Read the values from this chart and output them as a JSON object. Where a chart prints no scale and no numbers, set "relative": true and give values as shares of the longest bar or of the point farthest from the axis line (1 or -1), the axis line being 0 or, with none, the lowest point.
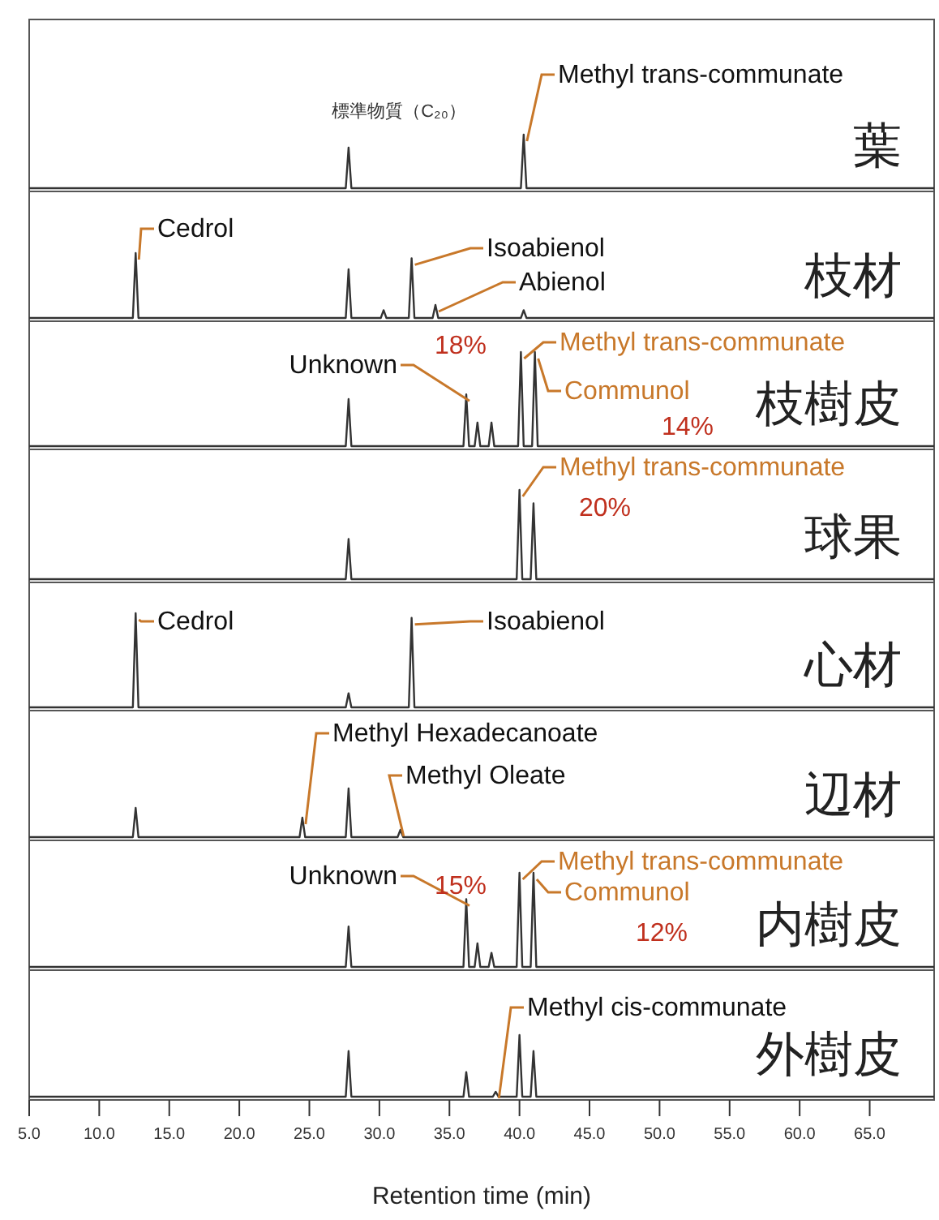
{
  "chart_data": [
    {
      "type": "line",
      "title": "葉",
      "relative": true,
      "color": "#333333",
      "tick_labels": false,
      "xlim": [
        5,
        69.6
      ],
      "x": [
        5,
        27.6,
        27.8,
        28.0,
        40.1,
        40.3,
        40.5,
        69.6
      ],
      "values": [
        0,
        0,
        0.76,
        0,
        0,
        1,
        0,
        0
      ],
      "annotations": [
        "標準物質（C₂₀）",
        {
          "text": "Methyl trans-communate",
          "x": 40.3,
          "y": 1
        }
      ]
    },
    {
      "type": "line",
      "title": "枝材",
      "relative": true,
      "color": "#333333",
      "tick_labels": false,
      "xlim": [
        5,
        69.6
      ],
      "x": [
        5,
        12.4,
        12.6,
        12.8,
        27.6,
        27.8,
        28.0,
        30.1,
        30.3,
        30.5,
        32.1,
        32.3,
        32.5,
        33.8,
        34.0,
        34.2,
        40.1,
        40.3,
        40.5,
        69.6
      ],
      "values": [
        0,
        0,
        1,
        0,
        0,
        0.75,
        0,
        0,
        0.12,
        0,
        0,
        0.92,
        0,
        0,
        0.2,
        0,
        0,
        0.12,
        0,
        0
      ],
      "annotations": [
        {
          "text": "Cedrol",
          "x": 12.6,
          "y": 1
        },
        {
          "text": "Isoabienol",
          "x": 32.3,
          "y": 0.92
        },
        {
          "text": "Abienol",
          "x": 34.0,
          "y": 0.2
        }
      ]
    },
    {
      "type": "line",
      "title": "枝樹皮",
      "relative": true,
      "color": "#333333",
      "tick_labels": false,
      "xlim": [
        5,
        69.6
      ],
      "x": [
        5,
        27.6,
        27.8,
        28.0,
        36.0,
        36.2,
        36.4,
        36.8,
        37.0,
        37.2,
        37.8,
        38.0,
        38.2,
        39.9,
        40.1,
        40.3,
        40.9,
        41.1,
        41.3,
        69.6
      ],
      "values": [
        0,
        0,
        0.5,
        0,
        0,
        0.55,
        0,
        0,
        0.25,
        0,
        0,
        0.25,
        0,
        0,
        1,
        0,
        0,
        1,
        0,
        0
      ],
      "annotations": [
        {
          "text": "Unknown",
          "x": 36.2,
          "y": 0.55
        },
        "18%",
        {
          "text": "Methyl trans-communate",
          "x": 40.1,
          "y": 1
        },
        {
          "text": "Communol",
          "x": 41.1,
          "y": 1
        },
        "14%"
      ]
    },
    {
      "type": "line",
      "title": "球果",
      "relative": true,
      "color": "#333333",
      "tick_labels": false,
      "xlim": [
        5,
        69.6
      ],
      "x": [
        5,
        27.6,
        27.8,
        28.0,
        39.8,
        40.0,
        40.2,
        40.8,
        41.0,
        41.2,
        69.6
      ],
      "values": [
        0,
        0,
        0.45,
        0,
        0,
        1,
        0,
        0,
        0.85,
        0,
        0
      ],
      "annotations": [
        {
          "text": "Methyl trans-communate",
          "x": 40.0,
          "y": 1
        },
        "20%"
      ]
    },
    {
      "type": "line",
      "title": "心材",
      "relative": true,
      "color": "#333333",
      "tick_labels": false,
      "xlim": [
        5,
        69.6
      ],
      "x": [
        5,
        12.4,
        12.6,
        12.8,
        27.6,
        27.8,
        28.0,
        32.1,
        32.3,
        32.5,
        69.6
      ],
      "values": [
        0,
        0,
        1,
        0,
        0,
        0.15,
        0,
        0,
        0.95,
        0,
        0
      ],
      "annotations": [
        {
          "text": "Cedrol",
          "x": 12.6,
          "y": 1
        },
        {
          "text": "Isoabienol",
          "x": 32.3,
          "y": 0.95
        }
      ]
    },
    {
      "type": "line",
      "title": "辺材",
      "relative": true,
      "color": "#333333",
      "tick_labels": false,
      "xlim": [
        5,
        69.6
      ],
      "x": [
        5,
        12.4,
        12.6,
        12.8,
        24.3,
        24.5,
        24.7,
        27.6,
        27.8,
        28.0,
        31.3,
        31.5,
        31.7,
        69.6
      ],
      "values": [
        0,
        0,
        0.6,
        0,
        0,
        0.4,
        0,
        0,
        1,
        0,
        0,
        0.15,
        0,
        0
      ],
      "annotations": [
        {
          "text": "Methyl Hexadecanoate",
          "x": 24.5,
          "y": 0.4
        },
        {
          "text": "Methyl Oleate",
          "x": 31.5,
          "y": 0.15
        }
      ]
    },
    {
      "type": "line",
      "title": "内樹皮",
      "relative": true,
      "color": "#333333",
      "tick_labels": false,
      "xlim": [
        5,
        69.6
      ],
      "x": [
        5,
        27.6,
        27.8,
        28.0,
        36.0,
        36.2,
        36.4,
        36.8,
        37.0,
        37.2,
        37.8,
        38.0,
        38.2,
        39.8,
        40.0,
        40.2,
        40.8,
        41.0,
        41.2,
        69.6
      ],
      "values": [
        0,
        0,
        0.43,
        0,
        0,
        0.72,
        0,
        0,
        0.25,
        0,
        0,
        0.15,
        0,
        0,
        1,
        0,
        0,
        1,
        0,
        0
      ],
      "annotations": [
        {
          "text": "Unknown",
          "x": 36.2,
          "y": 0.72
        },
        "15%",
        {
          "text": "Methyl trans-communate",
          "x": 40.0,
          "y": 1
        },
        {
          "text": "Communol",
          "x": 41.0,
          "y": 1
        },
        "12%"
      ]
    },
    {
      "type": "line",
      "title": "外樹皮",
      "relative": true,
      "color": "#333333",
      "tick_labels": "x",
      "xlim": [
        5,
        69.6
      ],
      "xlabel": "Retention time (min)",
      "x": [
        5,
        27.6,
        27.8,
        28.0,
        36.0,
        36.2,
        36.4,
        38.1,
        38.3,
        38.5,
        39.8,
        40.0,
        40.2,
        40.8,
        41.0,
        41.2,
        69.6
      ],
      "values": [
        0,
        0,
        0.74,
        0,
        0,
        0.4,
        0,
        0,
        0.08,
        0,
        0,
        1,
        0,
        0,
        0.74,
        0,
        0
      ],
      "xticks": [
        {
          "value": 5,
          "label": "5.0"
        },
        {
          "value": 10,
          "label": "10.0"
        },
        {
          "value": 15,
          "label": "15.0"
        },
        {
          "value": 20,
          "label": "20.0"
        },
        {
          "value": 25,
          "label": "25.0"
        },
        {
          "value": 30,
          "label": "30.0"
        },
        {
          "value": 35,
          "label": "35.0"
        },
        {
          "value": 40,
          "label": "40.0"
        },
        {
          "value": 45,
          "label": "45.0"
        },
        {
          "value": 50,
          "label": "50.0"
        },
        {
          "value": 55,
          "label": "55.0"
        },
        {
          "value": 60,
          "label": "60.0"
        },
        {
          "value": 65,
          "label": "65.0"
        }
      ],
      "annotations": [
        {
          "text": "Methyl cis-communate",
          "x": 38.3,
          "y": 0.08
        }
      ]
    }
  ]
}
